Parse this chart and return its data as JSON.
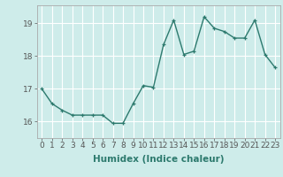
{
  "x": [
    0,
    1,
    2,
    3,
    4,
    5,
    6,
    7,
    8,
    9,
    10,
    11,
    12,
    13,
    14,
    15,
    16,
    17,
    18,
    19,
    20,
    21,
    22,
    23
  ],
  "y": [
    17.0,
    16.55,
    16.35,
    16.2,
    16.2,
    16.2,
    16.2,
    15.95,
    15.95,
    16.55,
    17.1,
    17.05,
    18.35,
    19.1,
    18.05,
    18.15,
    19.2,
    18.85,
    18.75,
    18.55,
    18.55,
    19.1,
    18.05,
    17.65
  ],
  "line_color": "#2d7a6e",
  "marker": "+",
  "marker_size": 3,
  "bg_color": "#ceecea",
  "grid_color": "#ffffff",
  "xlabel": "Humidex (Indice chaleur)",
  "ylim_min": 15.5,
  "ylim_max": 19.55,
  "yticks": [
    16,
    17,
    18,
    19
  ],
  "xlabel_fontsize": 7.5,
  "tick_fontsize": 6.5,
  "line_width": 1.0
}
